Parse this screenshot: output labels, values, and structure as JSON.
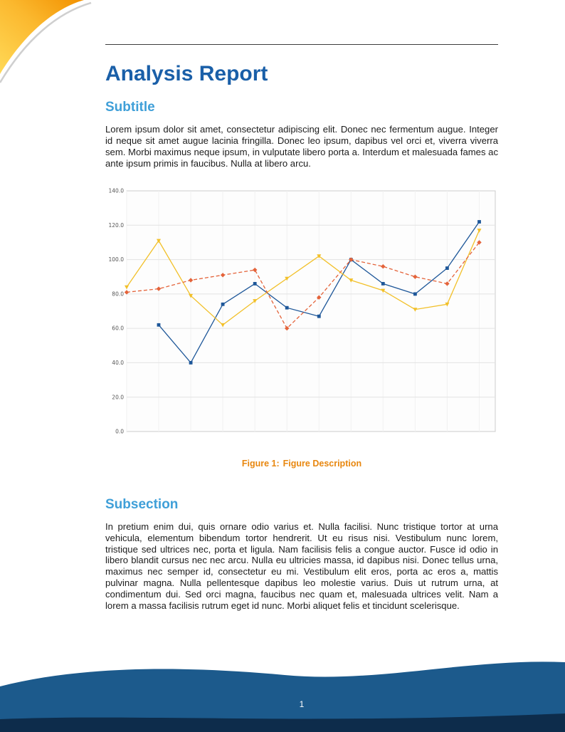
{
  "document": {
    "title": "Analysis Report",
    "sections": [
      {
        "heading": "Subtitle",
        "paragraph": "Lorem ipsum dolor sit amet, consectetur adipiscing elit. Donec nec fermentum augue. Integer id neque sit amet augue lacinia fringilla. Donec leo ipsum, dapibus vel orci et, viverra viverra sem. Morbi maximus neque ipsum, in vulputate libero porta a. Interdum et malesuada fames ac ante ipsum primis in faucibus. Nulla at libero arcu."
      },
      {
        "heading": "Subsection",
        "paragraph": "In pretium enim dui, quis ornare odio varius et. Nulla facilisi. Nunc tristique tortor at urna vehicula, elementum bibendum tortor hendrerit. Ut eu risus nisi. Vestibulum nunc lorem, tristique sed ultrices nec, porta et ligula. Nam facilisis felis a congue auctor. Fusce id odio in libero blandit cursus nec nec arcu. Nulla eu ultricies massa, id dapibus nisi. Donec tellus urna, maximus nec semper id, consectetur eu mi. Vestibulum elit eros, porta ac eros a, mattis pulvinar magna. Nulla pellentesque dapibus leo molestie varius. Duis ut rutrum urna, at condimentum dui. Sed orci magna, faucibus nec quam et, malesuada ultrices velit. Nam a lorem a massa facilisis rutrum eget id nunc. Morbi aliquet felis et tincidunt scelerisque."
      }
    ]
  },
  "figure": {
    "label": "Figure 1:",
    "description": "Figure Description"
  },
  "footer": {
    "page_number": "1"
  },
  "colors": {
    "title_blue": "#1a5fa8",
    "heading_blue": "#3f9fd8",
    "caption_orange": "#e8870f",
    "footer_main": "#1c5a8c",
    "footer_dark": "#0d2c4b",
    "corner_orange": "#f29100",
    "corner_mid": "#fbb82e",
    "corner_yellow": "#ffd957",
    "corner_shadow": "#cfcfcf"
  },
  "chart_data": {
    "type": "line",
    "title": "",
    "xlabel": "",
    "ylabel": "",
    "grid": true,
    "legend": "none",
    "x": [
      0,
      1,
      2,
      3,
      4,
      5,
      6,
      7,
      8,
      9,
      10,
      11
    ],
    "xlim": [
      0,
      11.5
    ],
    "ylim": [
      0,
      140
    ],
    "yticks": [
      {
        "value": 0,
        "label": "0.0"
      },
      {
        "value": 20,
        "label": "20.0"
      },
      {
        "value": 40,
        "label": "40.0"
      },
      {
        "value": 60,
        "label": "60.0"
      },
      {
        "value": 80,
        "label": "80.0"
      },
      {
        "value": 100,
        "label": "100.0"
      },
      {
        "value": 120,
        "label": "120.0"
      },
      {
        "value": 140,
        "label": "140.0"
      }
    ],
    "series": [
      {
        "name": "series-blue",
        "color": "#1e5799",
        "line": "solid",
        "marker": "square",
        "values": [
          null,
          62,
          40,
          74,
          86,
          72,
          67,
          100,
          86,
          80,
          95,
          122
        ]
      },
      {
        "name": "series-yellow",
        "color": "#f2c029",
        "line": "solid",
        "marker": "triangle",
        "values": [
          84,
          111,
          79,
          62,
          76,
          89,
          102,
          88,
          82,
          71,
          74,
          117
        ]
      },
      {
        "name": "series-orange",
        "color": "#e4633a",
        "line": "dashed",
        "marker": "diamond",
        "values": [
          81,
          83,
          88,
          91,
          94,
          60,
          78,
          100,
          96,
          90,
          86,
          110
        ]
      }
    ]
  }
}
